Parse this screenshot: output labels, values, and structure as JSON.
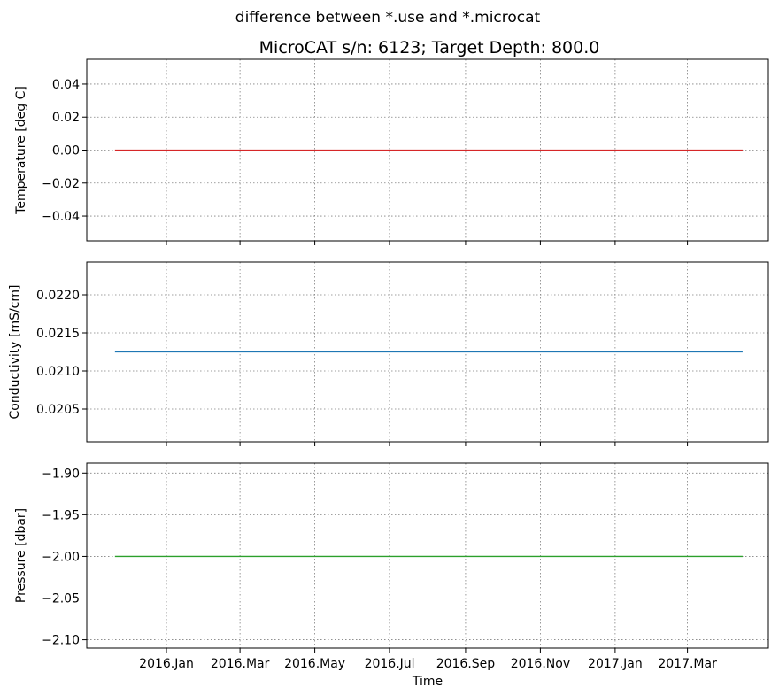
{
  "suptitle": "difference between *.use and *.microcat",
  "title": "MicroCAT s/n: 6123; Target Depth: 800.0",
  "xlabel": "Time",
  "x_ticks": [
    {
      "date": "2016-01-01",
      "label": "2016.Jan"
    },
    {
      "date": "2016-03-01",
      "label": "2016.Mar"
    },
    {
      "date": "2016-05-01",
      "label": "2016.May"
    },
    {
      "date": "2016-07-01",
      "label": "2016.Jul"
    },
    {
      "date": "2016-09-01",
      "label": "2016.Sep"
    },
    {
      "date": "2016-11-01",
      "label": "2016.Nov"
    },
    {
      "date": "2017-01-01",
      "label": "2017.Jan"
    },
    {
      "date": "2017-03-01",
      "label": "2017.Mar"
    }
  ],
  "chart_data": [
    {
      "type": "line",
      "ylabel": "Temperature [deg C]",
      "ylim": [
        -0.055,
        0.055
      ],
      "yticks": [
        0.04,
        0.02,
        0.0,
        -0.02,
        -0.04
      ],
      "ytick_labels": [
        "0.04",
        "0.02",
        "0.00",
        "−0.02",
        "−0.04"
      ],
      "color": "#d62728",
      "x": [
        "2015-11-20",
        "2017-04-15"
      ],
      "y": [
        0.0,
        0.0
      ],
      "grid": true
    },
    {
      "type": "line",
      "ylabel": "Conductivity [mS/cm]",
      "ylim": [
        0.02007,
        0.02243
      ],
      "yticks": [
        0.022,
        0.0215,
        0.021,
        0.0205
      ],
      "ytick_labels": [
        "0.0220",
        "0.0215",
        "0.0210",
        "0.0205"
      ],
      "color": "#1f77b4",
      "x": [
        "2015-11-20",
        "2017-04-15"
      ],
      "y": [
        0.02125,
        0.02125
      ],
      "grid": true
    },
    {
      "type": "line",
      "ylabel": "Pressure [dbar]",
      "ylim": [
        -2.11,
        -1.888
      ],
      "yticks": [
        -1.9,
        -1.95,
        -2.0,
        -2.05,
        -2.1
      ],
      "ytick_labels": [
        "−1.90",
        "−1.95",
        "−2.00",
        "−2.05",
        "−2.10"
      ],
      "color": "#2ca02c",
      "x": [
        "2015-11-20",
        "2017-04-15"
      ],
      "y": [
        -2.0,
        -2.0
      ],
      "grid": true
    }
  ]
}
